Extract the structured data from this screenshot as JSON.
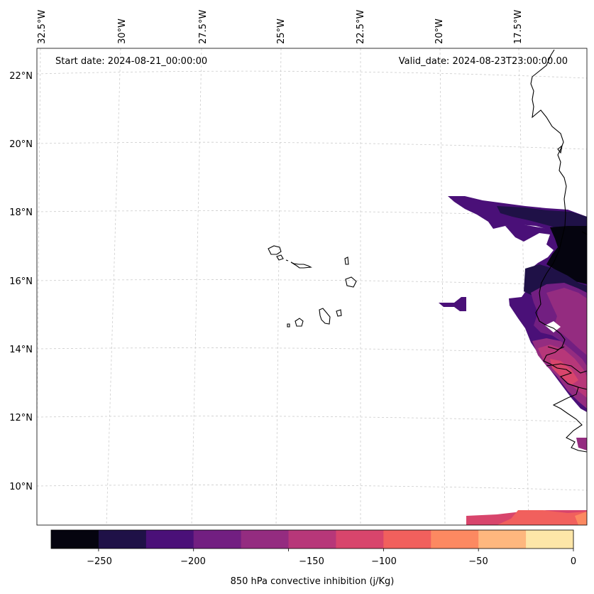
{
  "header": {
    "start_date": "Start date: 2024-08-21_00:00:00",
    "valid_date": "Valid_date: 2024-08-23T23:00:00.00"
  },
  "longitude_labels": [
    "32.5°W",
    "30°W",
    "27.5°W",
    "25°W",
    "22.5°W",
    "20°W",
    "17.5°W"
  ],
  "latitude_labels": [
    "22°N",
    "20°N",
    "18°N",
    "16°N",
    "14°N",
    "12°N",
    "10°N"
  ],
  "colorbar": {
    "label": "850 hPa convective inhibition (j/Kg)",
    "ticks": [
      "−250",
      "−200",
      "−150",
      "−100",
      "−50",
      "0"
    ],
    "levels": [
      -275,
      -250,
      -225,
      -200,
      -175,
      -150,
      -125,
      -100,
      -75,
      -50,
      -25,
      0
    ],
    "colors": [
      "#05040f",
      "#1f1147",
      "#4a1078",
      "#721f81",
      "#942c80",
      "#b73779",
      "#d8456c",
      "#f1605d",
      "#fc8961",
      "#feb77e",
      "#fde6a8"
    ]
  },
  "islands": "Cabo Verde islands",
  "coast": "West African coastline"
}
